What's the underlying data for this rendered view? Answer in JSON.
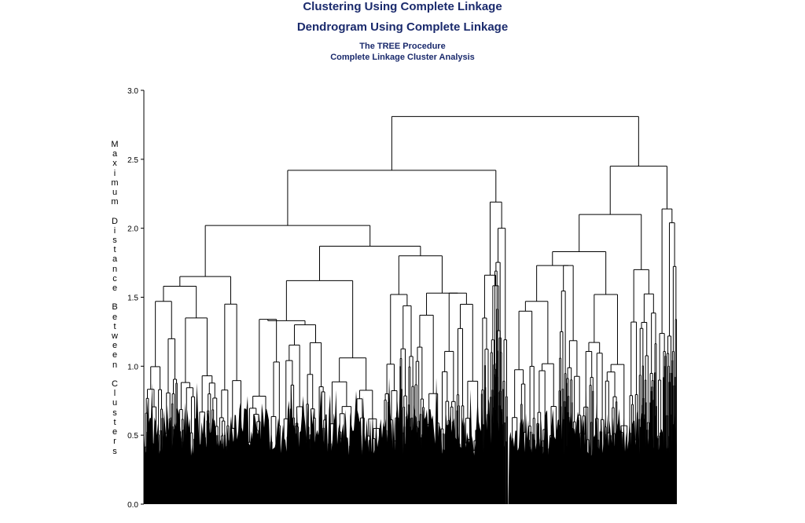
{
  "titles": {
    "main": "Clustering Using Complete Linkage",
    "sub": "Dendrogram Using Complete Linkage",
    "procedure": "The TREE Procedure",
    "analysis": "Complete Linkage Cluster Analysis"
  },
  "chart_data": {
    "type": "dendrogram",
    "title": "Dendrogram Using Complete Linkage",
    "ylabel": "Maximum Distance Between Clusters",
    "xlabel": "",
    "ylim": [
      0,
      3.0
    ],
    "yticks": [
      "0.0",
      "0.5",
      "1.0",
      "1.5",
      "2.0",
      "2.5",
      "3.0"
    ],
    "grid": false,
    "merges": [
      {
        "cluster": "root",
        "height": 2.81
      },
      {
        "cluster": "left-group",
        "height": 2.68
      },
      {
        "cluster": "right-group",
        "height": 2.45
      },
      {
        "cluster": "left-left",
        "height": 2.42
      },
      {
        "cluster": "left-right-branch",
        "height": 2.19
      },
      {
        "cluster": "right-far-branch",
        "height": 2.14
      },
      {
        "cluster": "right-main",
        "height": 2.1
      },
      {
        "cluster": "left-left-a",
        "height": 2.02
      },
      {
        "cluster": "left-left-b",
        "height": 1.87
      },
      {
        "cluster": "right-main-a",
        "height": 1.83
      },
      {
        "cluster": "left-left-b2",
        "height": 1.8
      },
      {
        "cluster": "right-far-sub",
        "height": 1.79
      },
      {
        "cluster": "right-main-a1",
        "height": 1.73
      },
      {
        "cluster": "right-sub-c",
        "height": 1.7
      },
      {
        "cluster": "left-left-a1",
        "height": 1.65
      },
      {
        "cluster": "left-right-sub",
        "height": 1.66
      },
      {
        "cluster": "left-left-b1",
        "height": 1.62
      }
    ]
  }
}
